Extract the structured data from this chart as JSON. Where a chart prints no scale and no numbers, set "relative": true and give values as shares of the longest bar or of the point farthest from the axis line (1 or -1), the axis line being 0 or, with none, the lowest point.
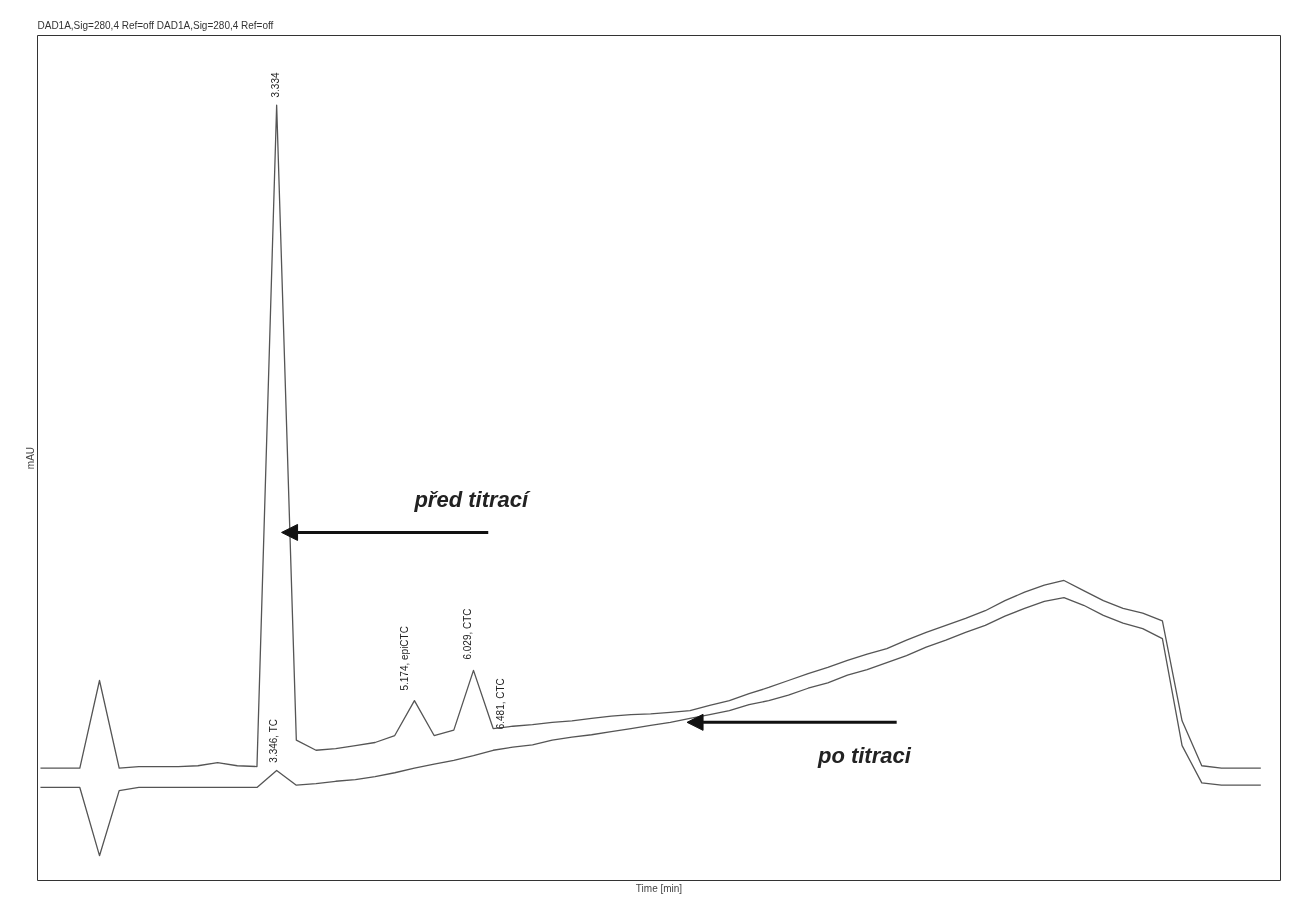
{
  "chart_data": {
    "type": "line",
    "title": "DAD1A,Sig=280,4  Ref=off  DAD1A,Sig=280,4  Ref=off",
    "xlabel": "Time [min]",
    "ylabel": "mAU",
    "relative": true,
    "line_style": "solid",
    "categories": [
      null,
      null,
      null,
      null,
      null,
      null,
      null,
      null,
      null,
      null,
      null,
      null,
      null,
      null,
      null,
      null,
      null,
      null,
      null,
      null,
      null,
      null,
      null,
      null,
      null,
      null,
      null,
      null,
      null,
      null,
      null,
      null,
      null,
      null,
      null,
      null,
      null,
      null,
      null,
      null,
      null,
      null,
      null,
      null,
      null,
      null,
      null,
      null,
      null,
      null,
      null,
      null,
      null,
      null,
      null,
      null,
      null,
      null,
      null,
      null,
      null,
      null,
      null
    ],
    "series": [
      {
        "color": "#555555",
        "values": [
          0.145,
          0.145,
          0.145,
          0.258,
          0.145,
          0.147,
          0.147,
          0.147,
          0.148,
          0.152,
          0.148,
          0.147,
          1,
          0.181,
          0.168,
          0.17,
          0.174,
          0.178,
          0.187,
          0.232,
          0.187,
          0.194,
          0.271,
          0.196,
          0.199,
          0.201,
          0.204,
          0.206,
          0.209,
          0.212,
          0.214,
          0.215,
          0.217,
          0.219,
          0.226,
          0.232,
          0.241,
          0.249,
          0.258,
          0.267,
          0.275,
          0.284,
          0.292,
          0.299,
          0.31,
          0.32,
          0.329,
          0.338,
          0.348,
          0.361,
          0.372,
          0.381,
          0.387,
          0.374,
          0.361,
          0.351,
          0.345,
          0.335,
          0.206,
          0.148,
          0.145,
          0.145,
          0.145
        ]
      },
      {
        "color": "#555555",
        "values": [
          0.12,
          0.12,
          0.12,
          0.032,
          0.116,
          0.12,
          0.12,
          0.12,
          0.12,
          0.12,
          0.12,
          0.12,
          0.142,
          0.123,
          0.125,
          0.128,
          0.13,
          0.134,
          0.139,
          0.145,
          0.15,
          0.155,
          0.161,
          0.168,
          0.172,
          0.175,
          0.181,
          0.185,
          0.188,
          0.192,
          0.196,
          0.2,
          0.204,
          0.209,
          0.214,
          0.219,
          0.227,
          0.232,
          0.239,
          0.248,
          0.255,
          0.265,
          0.272,
          0.281,
          0.29,
          0.301,
          0.31,
          0.32,
          0.329,
          0.341,
          0.351,
          0.36,
          0.365,
          0.355,
          0.342,
          0.332,
          0.325,
          0.312,
          0.174,
          0.126,
          0.123,
          0.123,
          0.123
        ]
      }
    ],
    "annotations": [
      "3.334",
      "3.346, TC",
      "5.174, epiCTC",
      "6.029, CTC",
      "6.481, CTC",
      "před titrací",
      "po titraci"
    ]
  }
}
